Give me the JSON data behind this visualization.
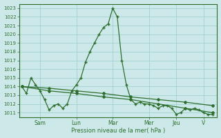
{
  "bg_color": "#cce8e8",
  "grid_color": "#99cccc",
  "line_color": "#2d6e2d",
  "marker_color": "#2d6e2d",
  "xlabel": "Pression niveau de la mer( hPa )",
  "ylim": [
    1010.5,
    1023.5
  ],
  "yticks": [
    1011,
    1012,
    1013,
    1014,
    1015,
    1016,
    1017,
    1018,
    1019,
    1020,
    1021,
    1022,
    1023
  ],
  "day_labels": [
    "Sam",
    "Lun",
    "Mar",
    "Mer",
    "Jeu",
    "V"
  ],
  "day_positions": [
    2,
    6,
    10,
    14,
    17,
    20
  ],
  "xlim": [
    -0.3,
    21.5
  ],
  "series1_x": [
    0,
    0.5,
    1,
    1.5,
    2,
    2.5,
    3,
    3.5,
    4,
    4.5,
    5,
    5.5,
    6,
    6.5,
    7,
    7.5,
    8,
    8.5,
    9,
    9.5,
    10,
    10.5,
    11,
    11.5,
    12,
    12.5,
    13,
    13.5,
    14,
    14.5,
    15,
    15.5,
    16,
    16.5,
    17,
    17.5,
    18,
    18.5,
    19,
    19.5,
    20,
    20.5,
    21
  ],
  "series1_y": [
    1014.0,
    1013.2,
    1015.0,
    1014.2,
    1013.5,
    1012.5,
    1011.3,
    1011.8,
    1012.0,
    1011.5,
    1012.0,
    1013.5,
    1014.2,
    1015.0,
    1016.8,
    1018.0,
    1019.0,
    1020.0,
    1020.8,
    1021.2,
    1023.0,
    1022.0,
    1017.0,
    1014.2,
    1012.5,
    1012.0,
    1012.2,
    1012.0,
    1012.0,
    1011.8,
    1011.5,
    1011.8,
    1011.8,
    1011.5,
    1010.8,
    1011.0,
    1011.5,
    1011.3,
    1011.5,
    1011.3,
    1011.0,
    1010.8,
    1010.8
  ],
  "series2_x": [
    0,
    3,
    6,
    9,
    12,
    15,
    18,
    21
  ],
  "series2_y": [
    1014.0,
    1013.5,
    1013.2,
    1012.8,
    1012.5,
    1012.0,
    1011.5,
    1011.0
  ],
  "series3_x": [
    0,
    3,
    6,
    9,
    12,
    15,
    18,
    21
  ],
  "series3_y": [
    1014.0,
    1013.8,
    1013.5,
    1013.2,
    1012.8,
    1012.5,
    1012.2,
    1011.8
  ],
  "figsize": [
    3.2,
    2.0
  ],
  "dpi": 100
}
